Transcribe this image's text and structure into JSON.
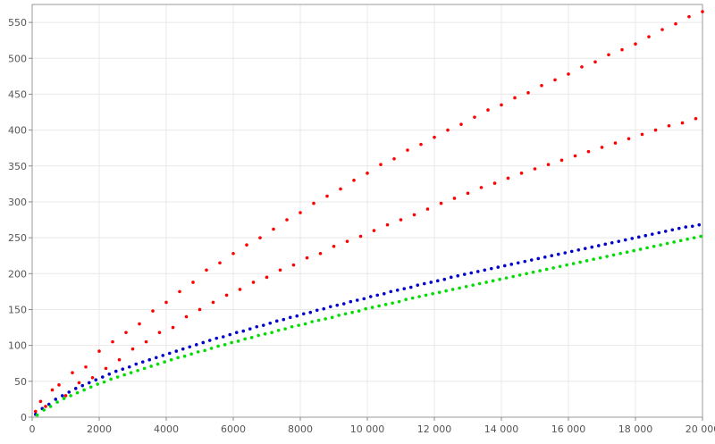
{
  "chart_data": {
    "type": "scatter",
    "xlim": [
      0,
      20000
    ],
    "ylim": [
      0,
      575
    ],
    "x_ticks": [
      0,
      2000,
      4000,
      6000,
      8000,
      10000,
      12000,
      14000,
      16000,
      18000,
      20000
    ],
    "x_tick_labels": [
      "0",
      "2000",
      "4000",
      "6000",
      "8000",
      "10 000",
      "12 000",
      "14 000",
      "16 000",
      "18 000",
      "20 000"
    ],
    "y_ticks": [
      0,
      50,
      100,
      150,
      200,
      250,
      300,
      350,
      400,
      450,
      500,
      550
    ],
    "y_tick_labels": [
      "0",
      "50",
      "100",
      "150",
      "200",
      "250",
      "300",
      "350",
      "400",
      "450",
      "500",
      "550"
    ],
    "grid": true,
    "legend": "none",
    "series": [
      {
        "color": "#ff0000",
        "points": [
          [
            100,
            8
          ],
          [
            250,
            22
          ],
          [
            400,
            15
          ],
          [
            600,
            38
          ],
          [
            800,
            45
          ],
          [
            1000,
            30
          ],
          [
            1200,
            62
          ],
          [
            1400,
            48
          ],
          [
            1600,
            70
          ],
          [
            1800,
            55
          ],
          [
            2000,
            92
          ],
          [
            2200,
            68
          ],
          [
            2400,
            105
          ],
          [
            2600,
            80
          ],
          [
            2800,
            118
          ],
          [
            3000,
            95
          ],
          [
            3200,
            130
          ],
          [
            3400,
            105
          ],
          [
            3600,
            148
          ],
          [
            3800,
            118
          ],
          [
            4000,
            160
          ],
          [
            4200,
            125
          ],
          [
            4400,
            175
          ],
          [
            4600,
            140
          ],
          [
            4800,
            188
          ],
          [
            5000,
            150
          ],
          [
            5200,
            205
          ],
          [
            5400,
            160
          ],
          [
            5600,
            215
          ],
          [
            5800,
            170
          ],
          [
            6000,
            228
          ],
          [
            6200,
            178
          ],
          [
            6400,
            240
          ],
          [
            6600,
            188
          ],
          [
            6800,
            250
          ],
          [
            7000,
            195
          ],
          [
            7200,
            262
          ],
          [
            7400,
            205
          ],
          [
            7600,
            275
          ],
          [
            7800,
            212
          ],
          [
            8000,
            285
          ],
          [
            8200,
            222
          ],
          [
            8400,
            298
          ],
          [
            8600,
            228
          ],
          [
            8800,
            308
          ],
          [
            9000,
            238
          ],
          [
            9200,
            318
          ],
          [
            9400,
            245
          ],
          [
            9600,
            330
          ],
          [
            9800,
            252
          ],
          [
            10000,
            340
          ],
          [
            10200,
            260
          ],
          [
            10400,
            352
          ],
          [
            10600,
            268
          ],
          [
            10800,
            360
          ],
          [
            11000,
            275
          ],
          [
            11200,
            372
          ],
          [
            11400,
            282
          ],
          [
            11600,
            380
          ],
          [
            11800,
            290
          ],
          [
            12000,
            390
          ],
          [
            12200,
            298
          ],
          [
            12400,
            400
          ],
          [
            12600,
            305
          ],
          [
            12800,
            408
          ],
          [
            13000,
            312
          ],
          [
            13200,
            418
          ],
          [
            13400,
            320
          ],
          [
            13600,
            428
          ],
          [
            13800,
            326
          ],
          [
            14000,
            435
          ],
          [
            14200,
            333
          ],
          [
            14400,
            445
          ],
          [
            14600,
            340
          ],
          [
            14800,
            452
          ],
          [
            15000,
            346
          ],
          [
            15200,
            462
          ],
          [
            15400,
            352
          ],
          [
            15600,
            470
          ],
          [
            15800,
            358
          ],
          [
            16000,
            478
          ],
          [
            16200,
            364
          ],
          [
            16400,
            488
          ],
          [
            16600,
            370
          ],
          [
            16800,
            495
          ],
          [
            17000,
            376
          ],
          [
            17200,
            505
          ],
          [
            17400,
            382
          ],
          [
            17600,
            512
          ],
          [
            17800,
            388
          ],
          [
            18000,
            520
          ],
          [
            18200,
            394
          ],
          [
            18400,
            530
          ],
          [
            18600,
            400
          ],
          [
            18800,
            540
          ],
          [
            19000,
            406
          ],
          [
            19200,
            548
          ],
          [
            19400,
            410
          ],
          [
            19600,
            558
          ],
          [
            19800,
            416
          ],
          [
            20000,
            565
          ]
        ]
      },
      {
        "color": "#0000cc",
        "points": [
          [
            100,
            4
          ],
          [
            300,
            12
          ],
          [
            500,
            18
          ],
          [
            700,
            25
          ],
          [
            900,
            30
          ],
          [
            1100,
            35
          ],
          [
            1300,
            40
          ],
          [
            1500,
            44
          ],
          [
            1700,
            48
          ],
          [
            1900,
            52
          ],
          [
            2100,
            56
          ],
          [
            2300,
            60
          ],
          [
            2500,
            64
          ],
          [
            2700,
            67
          ],
          [
            2900,
            70
          ],
          [
            3100,
            74
          ],
          [
            3300,
            77
          ],
          [
            3500,
            80
          ],
          [
            3700,
            83
          ],
          [
            3900,
            86
          ],
          [
            4100,
            89
          ],
          [
            4300,
            92
          ],
          [
            4500,
            95
          ],
          [
            4700,
            98
          ],
          [
            4900,
            101
          ],
          [
            5100,
            104
          ],
          [
            5300,
            107
          ],
          [
            5500,
            110
          ],
          [
            5700,
            112
          ],
          [
            5900,
            115
          ],
          [
            6100,
            118
          ],
          [
            6300,
            120
          ],
          [
            6500,
            123
          ],
          [
            6700,
            126
          ],
          [
            6900,
            128
          ],
          [
            7100,
            131
          ],
          [
            7300,
            134
          ],
          [
            7500,
            136
          ],
          [
            7700,
            139
          ],
          [
            7900,
            141
          ],
          [
            8100,
            144
          ],
          [
            8300,
            146
          ],
          [
            8500,
            149
          ],
          [
            8700,
            151
          ],
          [
            8900,
            154
          ],
          [
            9100,
            156
          ],
          [
            9300,
            158
          ],
          [
            9500,
            161
          ],
          [
            9700,
            163
          ],
          [
            9900,
            165
          ],
          [
            10100,
            168
          ],
          [
            10300,
            170
          ],
          [
            10500,
            172
          ],
          [
            10700,
            175
          ],
          [
            10900,
            177
          ],
          [
            11100,
            179
          ],
          [
            11300,
            181
          ],
          [
            11500,
            184
          ],
          [
            11700,
            186
          ],
          [
            11900,
            188
          ],
          [
            12100,
            190
          ],
          [
            12300,
            192
          ],
          [
            12500,
            195
          ],
          [
            12700,
            197
          ],
          [
            12900,
            199
          ],
          [
            13100,
            201
          ],
          [
            13300,
            203
          ],
          [
            13500,
            205
          ],
          [
            13700,
            207
          ],
          [
            13900,
            209
          ],
          [
            14100,
            211
          ],
          [
            14300,
            213
          ],
          [
            14500,
            215
          ],
          [
            14700,
            217
          ],
          [
            14900,
            219
          ],
          [
            15100,
            221
          ],
          [
            15300,
            223
          ],
          [
            15500,
            225
          ],
          [
            15700,
            227
          ],
          [
            15900,
            229
          ],
          [
            16100,
            231
          ],
          [
            16300,
            233
          ],
          [
            16500,
            235
          ],
          [
            16700,
            237
          ],
          [
            16900,
            239
          ],
          [
            17100,
            241
          ],
          [
            17300,
            243
          ],
          [
            17500,
            245
          ],
          [
            17700,
            247
          ],
          [
            17900,
            249
          ],
          [
            18100,
            251
          ],
          [
            18300,
            253
          ],
          [
            18500,
            255
          ],
          [
            18700,
            257
          ],
          [
            18900,
            259
          ],
          [
            19100,
            261
          ],
          [
            19300,
            263
          ],
          [
            19500,
            265
          ],
          [
            19700,
            266
          ],
          [
            19900,
            268
          ]
        ]
      },
      {
        "color": "#00dd00",
        "points": [
          [
            150,
            3
          ],
          [
            350,
            10
          ],
          [
            550,
            15
          ],
          [
            750,
            21
          ],
          [
            950,
            26
          ],
          [
            1150,
            30
          ],
          [
            1350,
            34
          ],
          [
            1550,
            38
          ],
          [
            1750,
            42
          ],
          [
            1950,
            46
          ],
          [
            2150,
            49
          ],
          [
            2350,
            53
          ],
          [
            2550,
            56
          ],
          [
            2750,
            59
          ],
          [
            2950,
            62
          ],
          [
            3150,
            65
          ],
          [
            3350,
            68
          ],
          [
            3550,
            71
          ],
          [
            3750,
            74
          ],
          [
            3950,
            77
          ],
          [
            4150,
            80
          ],
          [
            4350,
            83
          ],
          [
            4550,
            85
          ],
          [
            4750,
            88
          ],
          [
            4950,
            91
          ],
          [
            5150,
            93
          ],
          [
            5350,
            96
          ],
          [
            5550,
            99
          ],
          [
            5750,
            101
          ],
          [
            5950,
            104
          ],
          [
            6150,
            106
          ],
          [
            6350,
            109
          ],
          [
            6550,
            111
          ],
          [
            6750,
            114
          ],
          [
            6950,
            116
          ],
          [
            7150,
            118
          ],
          [
            7350,
            121
          ],
          [
            7550,
            123
          ],
          [
            7750,
            126
          ],
          [
            7950,
            128
          ],
          [
            8150,
            130
          ],
          [
            8350,
            133
          ],
          [
            8550,
            135
          ],
          [
            8750,
            137
          ],
          [
            8950,
            139
          ],
          [
            9150,
            142
          ],
          [
            9350,
            144
          ],
          [
            9550,
            146
          ],
          [
            9750,
            148
          ],
          [
            9950,
            151
          ],
          [
            10150,
            153
          ],
          [
            10350,
            155
          ],
          [
            10550,
            157
          ],
          [
            10750,
            159
          ],
          [
            10950,
            161
          ],
          [
            11150,
            164
          ],
          [
            11350,
            166
          ],
          [
            11550,
            168
          ],
          [
            11750,
            170
          ],
          [
            11950,
            172
          ],
          [
            12150,
            174
          ],
          [
            12350,
            176
          ],
          [
            12550,
            178
          ],
          [
            12750,
            180
          ],
          [
            12950,
            182
          ],
          [
            13150,
            184
          ],
          [
            13350,
            186
          ],
          [
            13550,
            188
          ],
          [
            13750,
            190
          ],
          [
            13950,
            192
          ],
          [
            14150,
            194
          ],
          [
            14350,
            196
          ],
          [
            14550,
            198
          ],
          [
            14750,
            200
          ],
          [
            14950,
            202
          ],
          [
            15150,
            204
          ],
          [
            15350,
            206
          ],
          [
            15550,
            208
          ],
          [
            15750,
            210
          ],
          [
            15950,
            212
          ],
          [
            16150,
            214
          ],
          [
            16350,
            216
          ],
          [
            16550,
            218
          ],
          [
            16750,
            220
          ],
          [
            16950,
            222
          ],
          [
            17150,
            224
          ],
          [
            17350,
            226
          ],
          [
            17550,
            228
          ],
          [
            17750,
            230
          ],
          [
            17950,
            232
          ],
          [
            18150,
            234
          ],
          [
            18350,
            236
          ],
          [
            18550,
            238
          ],
          [
            18750,
            240
          ],
          [
            18950,
            242
          ],
          [
            19150,
            244
          ],
          [
            19350,
            246
          ],
          [
            19550,
            248
          ],
          [
            19750,
            250
          ],
          [
            19950,
            252
          ]
        ]
      }
    ]
  }
}
